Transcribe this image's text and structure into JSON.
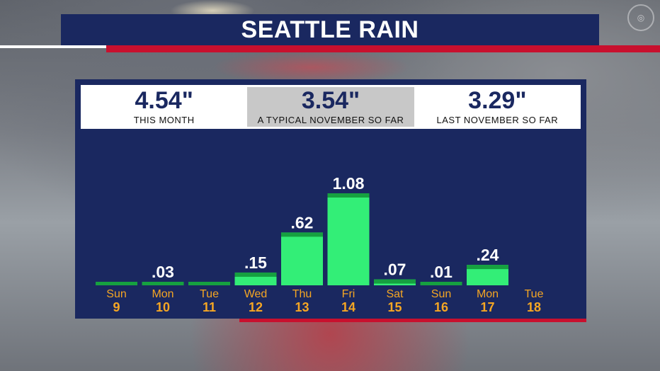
{
  "title": "SEATTLE RAIN",
  "summary": [
    {
      "value": "4.54\"",
      "label": "THIS MONTH"
    },
    {
      "value": "3.54\"",
      "label": "A TYPICAL NOVEMBER SO FAR"
    },
    {
      "value": "3.29\"",
      "label": "LAST NOVEMBER SO FAR"
    }
  ],
  "colors": {
    "navy": "#1a2860",
    "bar": "#33ee77",
    "bar_cap": "#16a040",
    "day_num": "#f5a623",
    "day_name": "#f5a623",
    "red": "#c8102e"
  },
  "chart_data": {
    "type": "bar",
    "categories": [
      {
        "day": "Sun",
        "date": "9"
      },
      {
        "day": "Mon",
        "date": "10"
      },
      {
        "day": "Tue",
        "date": "11"
      },
      {
        "day": "Wed",
        "date": "12"
      },
      {
        "day": "Thu",
        "date": "13"
      },
      {
        "day": "Fri",
        "date": "14"
      },
      {
        "day": "Sat",
        "date": "15"
      },
      {
        "day": "Sun",
        "date": "16"
      },
      {
        "day": "Mon",
        "date": "17"
      },
      {
        "day": "Tue",
        "date": "18"
      }
    ],
    "values": [
      0,
      0.03,
      0,
      0.15,
      0.62,
      1.08,
      0.07,
      0.01,
      0.24,
      null
    ],
    "labels": [
      "",
      ".03",
      "",
      ".15",
      ".62",
      "1.08",
      ".07",
      ".01",
      ".24",
      ""
    ],
    "ylim": [
      0,
      1.08
    ],
    "grid": false
  }
}
